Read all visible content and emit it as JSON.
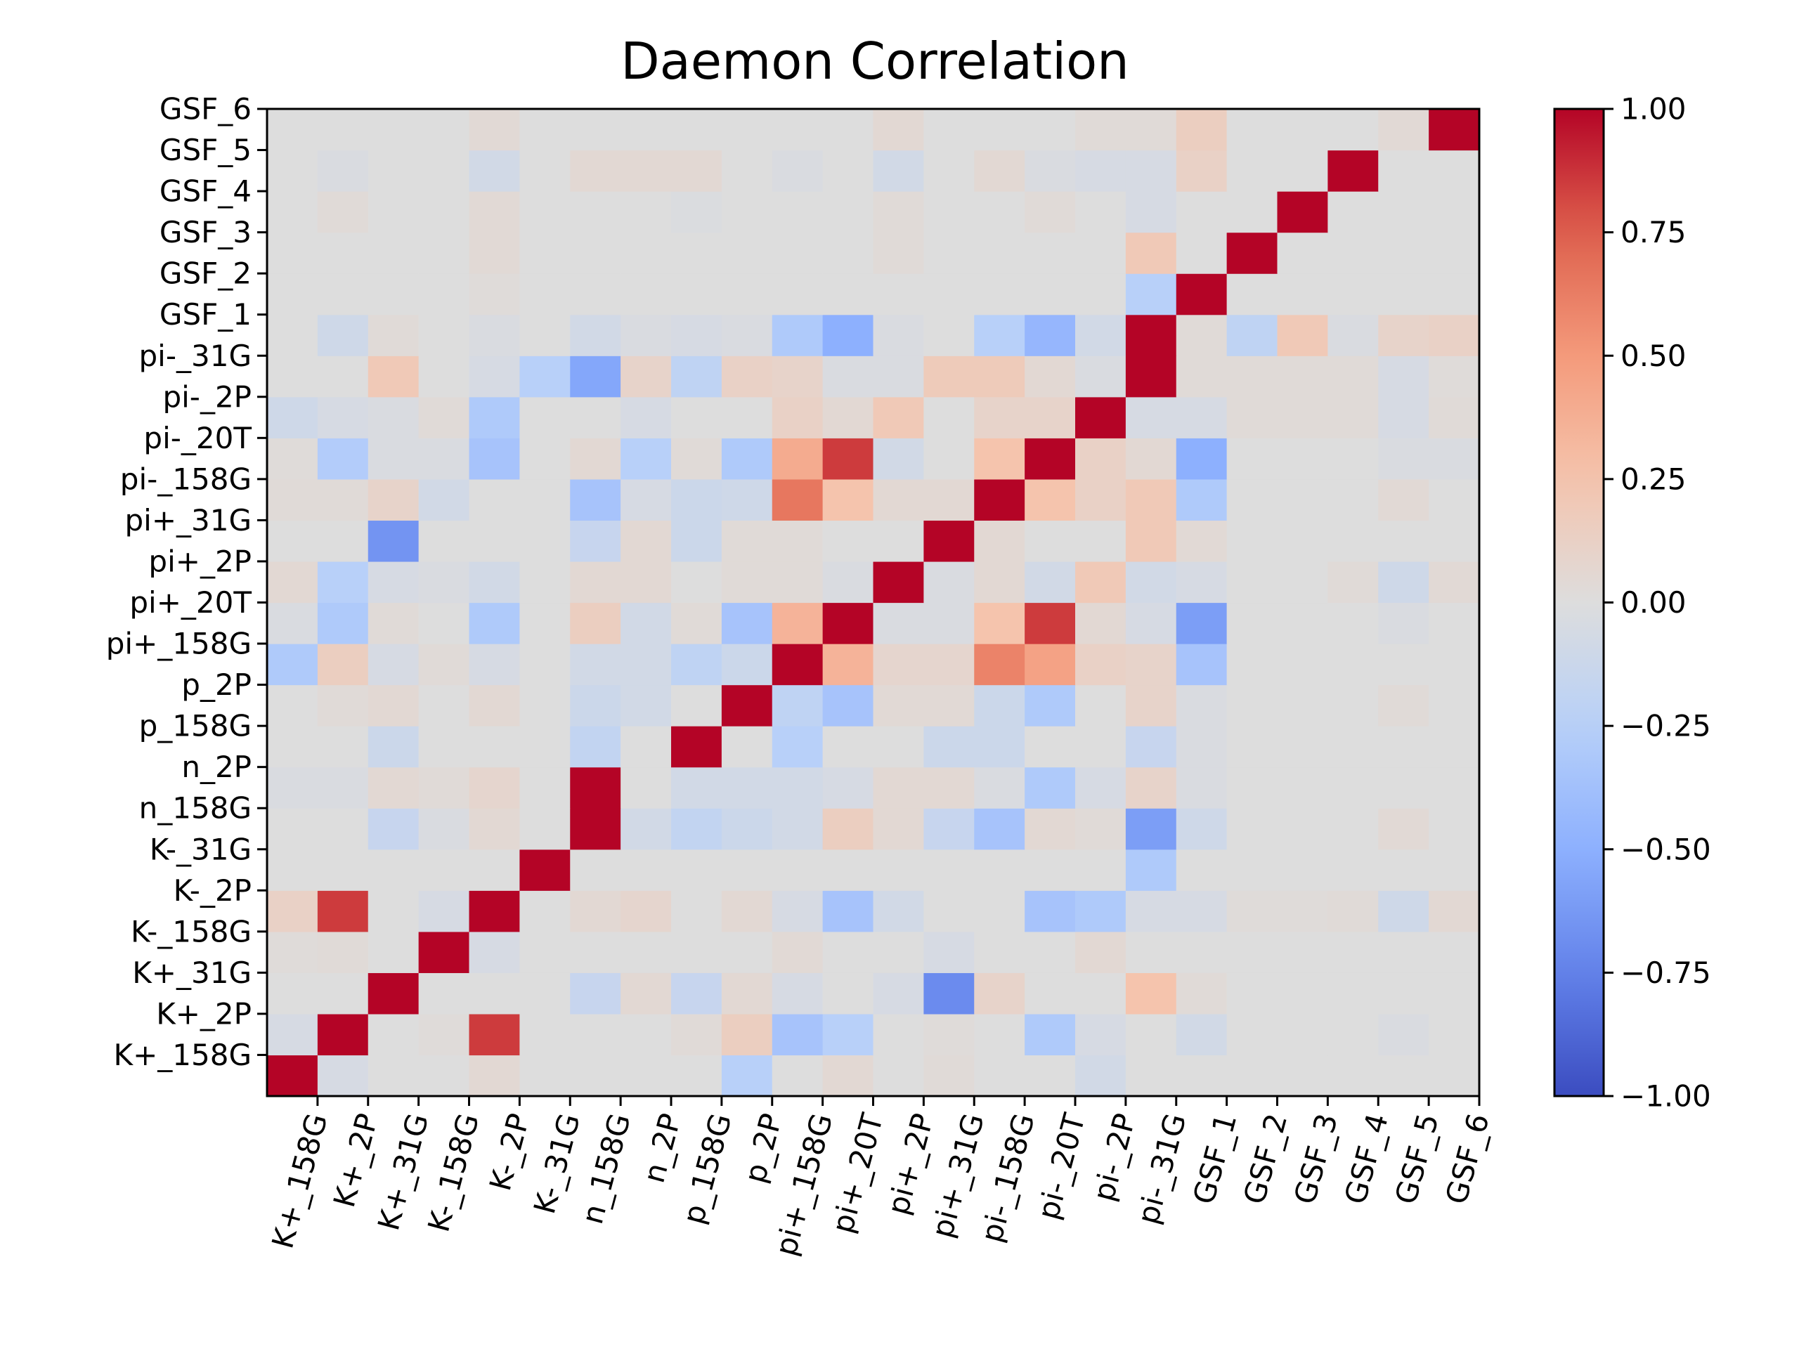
{
  "chart_data": {
    "type": "heatmap",
    "title": "Daemon Correlation",
    "labels": [
      "K+_158G",
      "K+_2P",
      "K+_31G",
      "K-_158G",
      "K-_2P",
      "K-_31G",
      "n_158G",
      "n_2P",
      "p_158G",
      "p_2P",
      "pi+_158G",
      "pi+_20T",
      "pi+_2P",
      "pi+_31G",
      "pi-_158G",
      "pi-_20T",
      "pi-_2P",
      "pi-_31G",
      "GSF_1",
      "GSF_2",
      "GSF_3",
      "GSF_4",
      "GSF_5",
      "GSF_6"
    ],
    "vmin": -1.0,
    "vmax": 1.0,
    "colormap": "coolwarm",
    "colorbar_ticks": [
      "1.00",
      "0.75",
      "0.50",
      "0.25",
      "0.00",
      "−0.25",
      "−0.50",
      "−0.75",
      "−1.00"
    ],
    "matrix": [
      [
        1,
        -0.05,
        0,
        0,
        0.05,
        0,
        0,
        0,
        0,
        -0.25,
        0,
        0.05,
        0,
        0.03,
        0,
        0,
        -0.08,
        0,
        0,
        0,
        0,
        0,
        0,
        0
      ],
      [
        -0.05,
        1,
        0,
        0.02,
        0.85,
        0,
        0,
        0,
        0.03,
        0.15,
        -0.35,
        -0.25,
        0,
        0.02,
        0,
        -0.3,
        -0.05,
        0,
        -0.08,
        0,
        0,
        0,
        -0.03,
        0
      ],
      [
        0,
        0,
        1,
        0,
        0,
        0,
        -0.15,
        0.05,
        -0.15,
        0.05,
        -0.05,
        0,
        -0.05,
        -0.7,
        0.1,
        0,
        0,
        0.25,
        0.03,
        0,
        0,
        0,
        0,
        0
      ],
      [
        0.02,
        0.03,
        0,
        1,
        -0.05,
        0,
        0,
        0,
        0,
        0,
        0.04,
        0,
        0,
        -0.05,
        0,
        0,
        0.05,
        0,
        0,
        0,
        0,
        0,
        0,
        0
      ],
      [
        0.12,
        0.85,
        0,
        -0.05,
        1,
        0,
        0.05,
        0.08,
        0,
        0.05,
        -0.05,
        -0.35,
        -0.08,
        0,
        0,
        -0.35,
        -0.3,
        -0.05,
        -0.05,
        0.02,
        0.02,
        0.03,
        -0.1,
        0.05
      ],
      [
        0,
        0,
        0,
        0,
        0,
        1,
        0,
        0,
        0,
        0,
        0,
        0,
        0,
        0,
        0,
        0,
        0,
        -0.3,
        0,
        0,
        0,
        0,
        0,
        0
      ],
      [
        0,
        0,
        -0.15,
        -0.03,
        0.05,
        0,
        1,
        -0.08,
        -0.18,
        -0.12,
        -0.08,
        0.15,
        0.05,
        -0.15,
        -0.35,
        0.05,
        0.03,
        -0.6,
        -0.1,
        0,
        0,
        0,
        0.04,
        0
      ],
      [
        -0.03,
        -0.03,
        0.05,
        0.03,
        0.08,
        0,
        1,
        0,
        -0.08,
        -0.08,
        -0.08,
        -0.05,
        0.05,
        0.05,
        -0.03,
        -0.3,
        -0.05,
        0.1,
        -0.03,
        0,
        0,
        0,
        0,
        0
      ],
      [
        0,
        0,
        -0.12,
        0,
        0,
        0,
        -0.18,
        0,
        1,
        0,
        -0.25,
        0,
        0,
        -0.12,
        -0.12,
        0,
        0,
        -0.15,
        -0.03,
        0,
        0,
        0,
        0,
        0
      ],
      [
        0,
        0.03,
        0.05,
        0,
        0.05,
        0,
        -0.12,
        -0.08,
        0,
        1,
        -0.2,
        -0.35,
        0.04,
        0.04,
        -0.12,
        -0.3,
        0,
        0.1,
        -0.03,
        0,
        0,
        0,
        0.03,
        0
      ],
      [
        -0.3,
        0.15,
        -0.05,
        0.03,
        -0.05,
        0,
        -0.08,
        -0.08,
        -0.2,
        -0.12,
        1,
        0.35,
        0.08,
        0.08,
        0.6,
        0.45,
        0.12,
        0.1,
        -0.35,
        0,
        0,
        0,
        0,
        0
      ],
      [
        -0.03,
        -0.3,
        0.03,
        0,
        -0.3,
        0,
        0.15,
        -0.08,
        0.03,
        -0.35,
        0.35,
        1,
        -0.03,
        -0.03,
        0.25,
        0.85,
        0.05,
        -0.05,
        -0.6,
        0,
        0,
        0,
        -0.03,
        0
      ],
      [
        0.05,
        -0.25,
        -0.05,
        -0.03,
        -0.08,
        0,
        0.05,
        0.05,
        0,
        0.03,
        0.03,
        -0.03,
        1,
        -0.03,
        0.05,
        -0.08,
        0.2,
        -0.08,
        -0.05,
        0,
        0,
        0.03,
        -0.1,
        0.04
      ],
      [
        0,
        0,
        -0.65,
        0,
        0,
        0,
        -0.15,
        0.05,
        -0.12,
        0.03,
        0.03,
        0,
        0,
        1,
        0.05,
        0,
        0,
        0.2,
        0.04,
        0,
        0,
        0,
        0,
        0
      ],
      [
        0.03,
        0.03,
        0.1,
        -0.08,
        0,
        0,
        -0.35,
        -0.05,
        -0.12,
        -0.1,
        0.65,
        0.25,
        0.05,
        0.05,
        1,
        0.25,
        0.12,
        0.2,
        -0.3,
        0,
        0,
        0,
        0.04,
        0
      ],
      [
        0.02,
        -0.28,
        -0.03,
        -0.03,
        -0.35,
        0,
        0.05,
        -0.25,
        0.03,
        -0.3,
        0.4,
        0.85,
        -0.08,
        0,
        0.25,
        1,
        0.12,
        0.05,
        -0.5,
        0,
        0,
        0,
        -0.03,
        -0.03
      ],
      [
        -0.1,
        -0.05,
        -0.03,
        0.03,
        -0.3,
        0,
        0,
        -0.05,
        0,
        0,
        0.12,
        0.05,
        0.2,
        0,
        0.1,
        0.1,
        1,
        -0.05,
        -0.05,
        0.03,
        0.03,
        0.03,
        -0.05,
        0.03
      ],
      [
        0,
        0,
        0.2,
        0,
        -0.05,
        -0.25,
        -0.55,
        0.1,
        -0.2,
        0.12,
        0.1,
        -0.03,
        -0.03,
        0.18,
        0.18,
        0.05,
        -0.03,
        1,
        0.03,
        0.03,
        0.03,
        0.03,
        -0.05,
        0.02
      ],
      [
        0,
        -0.1,
        0.03,
        0,
        -0.03,
        0,
        -0.08,
        -0.03,
        -0.05,
        -0.03,
        -0.3,
        -0.5,
        -0.03,
        0,
        -0.25,
        -0.45,
        -0.08,
        1,
        0.03,
        -0.2,
        0.2,
        -0.03,
        0.1,
        0.12
      ],
      [
        0,
        0,
        0,
        0,
        0.02,
        0,
        0,
        0,
        0,
        0,
        0,
        0,
        0,
        0,
        0,
        0,
        0,
        -0.25,
        1,
        0,
        0,
        0,
        0,
        0
      ],
      [
        0,
        0,
        0,
        0,
        0.04,
        0,
        0,
        0,
        0,
        0,
        0,
        0,
        0.03,
        0,
        0,
        0,
        0,
        0.2,
        0,
        1,
        0,
        0,
        0,
        0
      ],
      [
        0,
        0.03,
        0,
        0,
        0.04,
        0,
        0,
        0,
        -0.02,
        0,
        0,
        0,
        0.03,
        0,
        0,
        0.03,
        0,
        -0.05,
        0,
        0,
        1,
        0,
        0,
        0
      ],
      [
        0,
        -0.03,
        0,
        0,
        -0.08,
        0,
        0.05,
        0.05,
        0.05,
        0,
        -0.03,
        0,
        -0.08,
        0,
        0.05,
        -0.03,
        -0.05,
        -0.05,
        0.12,
        0,
        0,
        1,
        0,
        0
      ],
      [
        0,
        0,
        0,
        0,
        0.04,
        0,
        0,
        0,
        0,
        0,
        0,
        0,
        0.05,
        0,
        0,
        0,
        0.03,
        0.03,
        0.15,
        0,
        0,
        0,
        0.04,
        1
      ]
    ]
  }
}
